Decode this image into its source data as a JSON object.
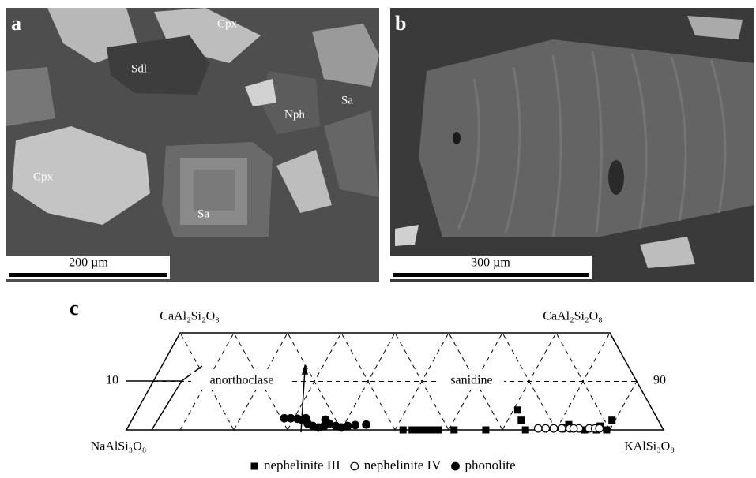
{
  "panels": [
    {
      "label": "a",
      "minerals": [
        "Cpx",
        "Sdl",
        "Nph",
        "Sa",
        "Cpx",
        "Sa"
      ],
      "scale_bar": "200 µm"
    },
    {
      "label": "b",
      "scale_bar": "300 µm"
    }
  ],
  "ternary": {
    "type": "scatter",
    "label": "c",
    "top_left": "CaAl₂Si₂O₈",
    "top_right": "CaAl₂Si₂O₈",
    "bottom_left": "NaAlSi₃O₈",
    "bottom_right": "KAlSi₃O₈",
    "side_labels": [
      10,
      90
    ],
    "fields": [
      "anorthoclase",
      "sanidine"
    ],
    "series": [
      {
        "name": "nephelinite III",
        "marker": "square",
        "or": [
          51.5,
          53.2,
          54.4,
          55.6,
          56.8,
          58.1,
          61.0,
          66.9,
          70.8,
          72.5,
          74.3,
          85.3,
          87.8,
          89.4,
          89.4,
          81.8,
          87.5
        ],
        "an": [
          0,
          0,
          0,
          0,
          0,
          0,
          0,
          0,
          4.1,
          2.0,
          0,
          0,
          0.8,
          0,
          2.0,
          1.1,
          0
        ]
      },
      {
        "name": "nephelinite IV",
        "marker": "open-circle",
        "or": [
          76.5,
          77.9,
          79.4,
          81.2,
          82.4,
          84.1,
          86.0,
          87.1,
          87.9,
          80.9,
          83.1
        ],
        "an": [
          0.3,
          0.3,
          0.3,
          0.3,
          0.3,
          0.3,
          0.3,
          0.3,
          0.3,
          0.3,
          0.3
        ]
      },
      {
        "name": "phonolite",
        "marker": "filled-circle",
        "or": [
          28.2,
          29.4,
          30.7,
          31.8,
          33.1,
          34.3,
          35.5,
          36.4,
          37.1,
          38.6,
          39.8,
          40.8,
          42.1,
          44.1,
          32.2,
          36.0
        ],
        "an": [
          2.4,
          2.4,
          2.3,
          2.0,
          1.3,
          0.8,
          0.5,
          0.8,
          1.3,
          0.8,
          0.5,
          0.8,
          1.0,
          1.1,
          2.4,
          2.1
        ]
      }
    ]
  }
}
